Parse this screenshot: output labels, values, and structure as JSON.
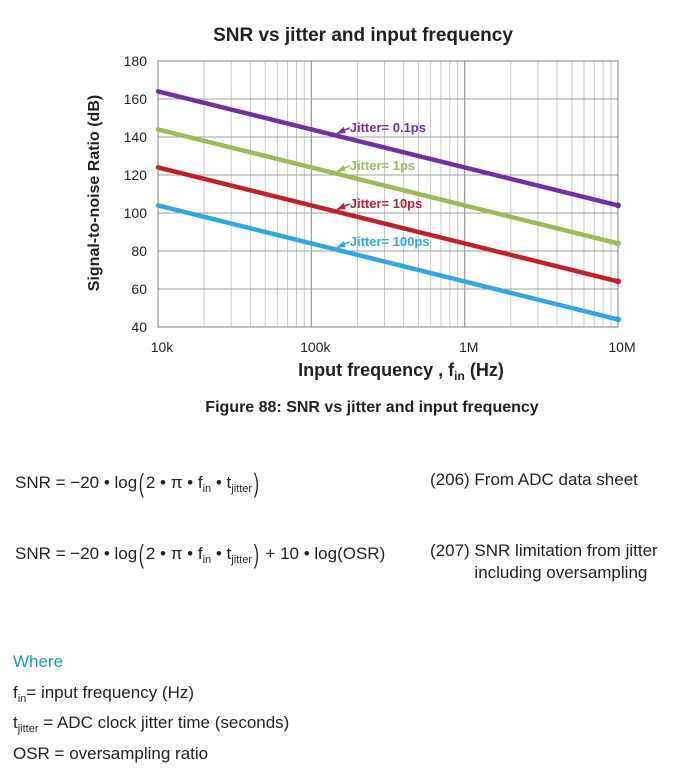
{
  "chart_data": {
    "type": "line",
    "title": "SNR vs jitter and input frequency",
    "xlabel": "Input frequency , f",
    "xlabel_sub": "in",
    "xlabel_unit": " (Hz)",
    "ylabel": "Signal-to-noise Ratio (dB)",
    "x_scale": "log",
    "xlim": [
      10000,
      10000000
    ],
    "ylim": [
      40,
      180
    ],
    "x_ticks": [
      10000,
      100000,
      1000000,
      10000000
    ],
    "x_tick_labels": [
      "10k",
      "100k",
      "1M",
      "10M"
    ],
    "y_ticks": [
      40,
      60,
      80,
      100,
      120,
      140,
      160,
      180
    ],
    "grid": true,
    "series": [
      {
        "name": "Jitter= 0.1ps",
        "color": "#7030a0",
        "x": [
          10000,
          10000000
        ],
        "y": [
          164,
          104
        ],
        "label_at": 140000
      },
      {
        "name": "Jitter= 1ps",
        "color": "#9bbb59",
        "x": [
          10000,
          10000000
        ],
        "y": [
          144,
          84
        ],
        "label_at": 140000
      },
      {
        "name": "Jitter= 10ps",
        "color": "#c0202e",
        "x": [
          10000,
          10000000
        ],
        "y": [
          124,
          64
        ],
        "label_at": 140000
      },
      {
        "name": "Jitter= 100ps",
        "color": "#2ea8e0",
        "x": [
          10000,
          10000000
        ],
        "y": [
          104,
          44
        ],
        "label_at": 140000
      }
    ]
  },
  "caption": "Figure 88: SNR vs jitter and input frequency",
  "equations": [
    {
      "number": "(206)",
      "description": "From ADC data sheet"
    },
    {
      "number": "(207)",
      "description": "SNR limitation from jitter including oversampling"
    }
  ],
  "where": {
    "heading": "Where",
    "heading_color": "#1a9bb5",
    "f_sym": "f",
    "f_sub": "in",
    "f_def": "= input frequency (Hz)",
    "t_sym": "t",
    "t_sub": "jitter",
    "t_def": " = ADC clock jitter time (seconds)",
    "osr": "OSR = oversampling ratio"
  }
}
